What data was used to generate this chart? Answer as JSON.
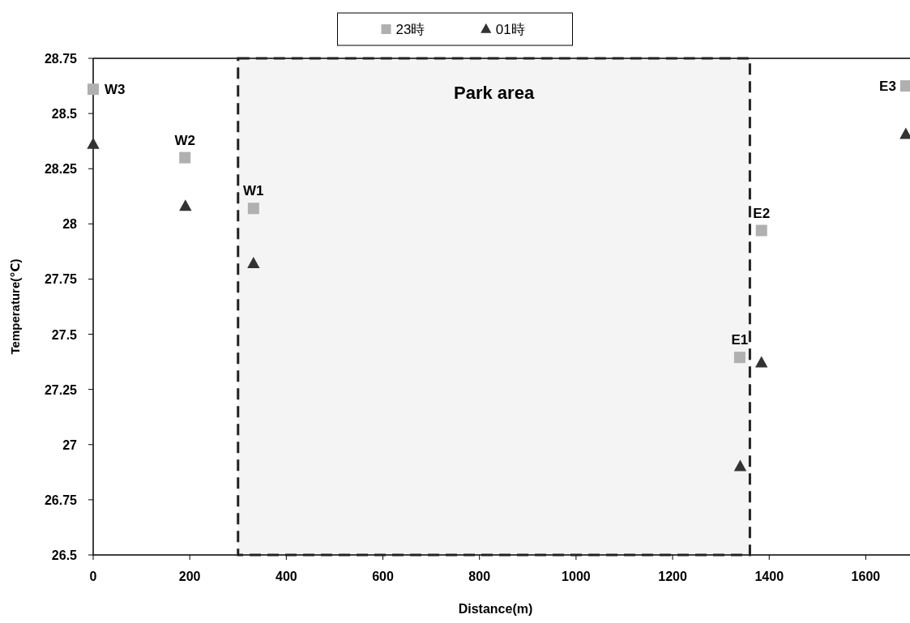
{
  "chart_data": {
    "type": "scatter",
    "xlabel": "Distance(m)",
    "ylabel": "Temperature(℃)",
    "series": [
      {
        "name": "23時",
        "color": "#b0b0b0",
        "marker": "square",
        "x": [
          0,
          190,
          332,
          1339,
          1384,
          1683
        ],
        "values": [
          28.61,
          28.3,
          28.07,
          27.395,
          27.97,
          28.625
        ]
      },
      {
        "name": "01時",
        "color": "#333333",
        "marker": "triangle",
        "x": [
          0,
          191,
          332,
          1340,
          1384,
          1683
        ],
        "values": [
          28.36,
          28.08,
          27.82,
          26.9,
          27.37,
          28.405
        ]
      }
    ],
    "annotations": [
      {
        "text": "W3",
        "x": 0,
        "y": 28.61
      },
      {
        "text": "W2",
        "x": 190,
        "y": 28.3
      },
      {
        "text": "W1",
        "x": 332,
        "y": 28.07
      },
      {
        "text": "E1",
        "x": 1339,
        "y": 27.395
      },
      {
        "text": "E2",
        "x": 1384,
        "y": 27.97
      },
      {
        "text": "E3",
        "x": 1683,
        "y": 28.625
      }
    ],
    "bands": [
      {
        "axis": "x",
        "from": 300,
        "to": 1360,
        "label": "Park area",
        "color": "#222222"
      }
    ],
    "xlim": [
      0,
      1700
    ],
    "xticks": [
      0,
      200,
      400,
      600,
      800,
      1000,
      1200,
      1400,
      1600
    ],
    "ylim": [
      26.5,
      28.75
    ],
    "yticks": [
      26.5,
      26.75,
      27,
      27.25,
      27.5,
      27.75,
      28,
      28.25,
      28.5,
      28.75
    ],
    "grid": false,
    "legend": "top"
  }
}
